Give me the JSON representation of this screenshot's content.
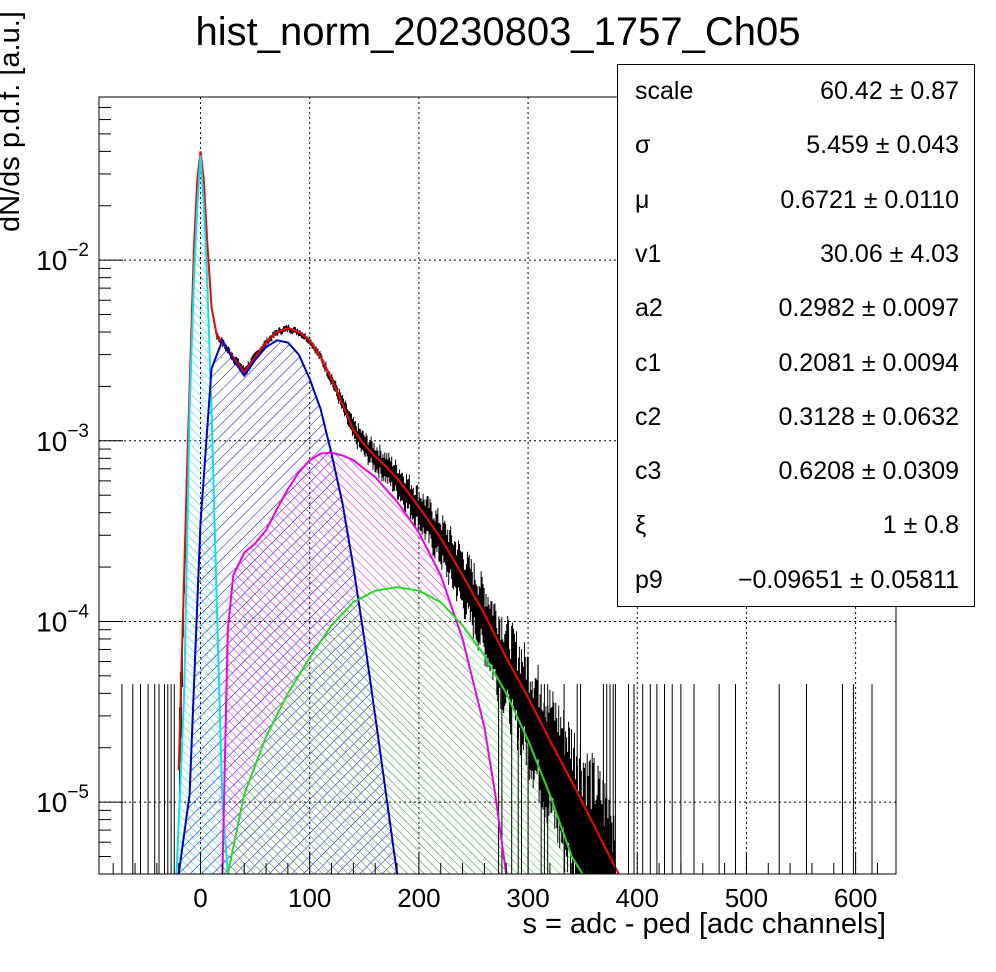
{
  "title": "hist_norm_20230803_1757_Ch05",
  "stats": [
    {
      "name": "scale",
      "value": "60.42 ± 0.87"
    },
    {
      "name": "σ",
      "value": "5.459 ± 0.043"
    },
    {
      "name": "μ",
      "value": "0.6721 ± 0.0110"
    },
    {
      "name": "v1",
      "value": "30.06 ± 4.03"
    },
    {
      "name": "a2",
      "value": "0.2982 ± 0.0097"
    },
    {
      "name": "c1",
      "value": "0.2081 ± 0.0094"
    },
    {
      "name": "c2",
      "value": "0.3128 ± 0.0632"
    },
    {
      "name": "c3",
      "value": "0.6208 ± 0.0309"
    },
    {
      "name": "ξ",
      "value": "1 ± 0.8"
    },
    {
      "name": "p9",
      "value": "−0.09651 ± 0.05811"
    }
  ],
  "chart_data": {
    "type": "line",
    "xlabel": "s = adc - ped [adc channels]",
    "ylabel": "dN/ds p.d.f. [a.u.]",
    "xlim": [
      -93,
      637
    ],
    "ylim": [
      4e-06,
      0.08
    ],
    "yscale": "log",
    "grid": true,
    "xticks": [
      0,
      100,
      200,
      300,
      400,
      500,
      600
    ],
    "yticks": [
      {
        "value": 1e-05,
        "base": "10",
        "exp": "−5"
      },
      {
        "value": 0.0001,
        "base": "10",
        "exp": "−4"
      },
      {
        "value": 0.001,
        "base": "10",
        "exp": "−3"
      },
      {
        "value": 0.01,
        "base": "10",
        "exp": "−2"
      }
    ],
    "series": [
      {
        "color": "#ff0000",
        "fill": false,
        "x": [
          -20,
          -12,
          -6,
          -3,
          0,
          3,
          6,
          10,
          15,
          20,
          30,
          40,
          50,
          60,
          70,
          80,
          90,
          100,
          110,
          120,
          130,
          140,
          150,
          160,
          170,
          180,
          200,
          220,
          240,
          260,
          280,
          300,
          320,
          340,
          360,
          383
        ],
        "y": [
          1.5e-05,
          0.0008,
          0.012,
          0.028,
          0.04,
          0.028,
          0.013,
          0.0055,
          0.0038,
          0.0035,
          0.0029,
          0.0024,
          0.0029,
          0.0035,
          0.004,
          0.0042,
          0.004,
          0.0036,
          0.0029,
          0.0022,
          0.0016,
          0.00115,
          0.00095,
          0.00082,
          0.00072,
          0.00062,
          0.00043,
          0.00029,
          0.00018,
          0.00011,
          6.3e-05,
          3.8e-05,
          2.2e-05,
          1.3e-05,
          7.5e-06,
          4e-06
        ]
      },
      {
        "color": "#00e5ee",
        "fill": true,
        "x": [
          -22,
          -15,
          -10,
          -6,
          -3,
          0,
          3,
          6,
          10,
          15,
          20,
          25
        ],
        "y": [
          4e-06,
          4e-05,
          0.0015,
          0.008,
          0.02,
          0.038,
          0.02,
          0.008,
          0.0015,
          0.00012,
          1e-05,
          4e-06
        ]
      },
      {
        "color": "#0000cc",
        "fill": true,
        "x": [
          -20,
          -10,
          0,
          10,
          20,
          30,
          40,
          50,
          60,
          70,
          80,
          90,
          100,
          110,
          120,
          130,
          140,
          150,
          160,
          180
        ],
        "y": [
          4e-06,
          1.1e-05,
          0.00035,
          0.0025,
          0.0036,
          0.0028,
          0.0023,
          0.0028,
          0.0033,
          0.0036,
          0.0035,
          0.003,
          0.0022,
          0.0015,
          0.00085,
          0.00045,
          0.0002,
          8e-05,
          3e-05,
          4e-06
        ]
      },
      {
        "color": "#ee00ee",
        "fill": true,
        "x": [
          20,
          25,
          30,
          40,
          50,
          60,
          70,
          80,
          90,
          100,
          110,
          120,
          130,
          140,
          160,
          180,
          200,
          220,
          240,
          260,
          270,
          280
        ],
        "y": [
          4e-06,
          9e-05,
          0.00018,
          0.00024,
          0.00027,
          0.00032,
          0.00042,
          0.00054,
          0.00067,
          0.00078,
          0.00085,
          0.00086,
          0.00083,
          0.00078,
          0.00063,
          0.00046,
          0.00031,
          0.00018,
          8e-05,
          2.6e-05,
          1.1e-05,
          4e-06
        ]
      },
      {
        "color": "#22dd22",
        "fill": true,
        "x": [
          25,
          40,
          60,
          80,
          100,
          120,
          140,
          160,
          180,
          200,
          220,
          240,
          260,
          280,
          300,
          320,
          340,
          350
        ],
        "y": [
          4e-06,
          1.1e-05,
          2.3e-05,
          4e-05,
          6.3e-05,
          9.5e-05,
          0.000128,
          0.000148,
          0.000155,
          0.000148,
          0.000128,
          9.5e-05,
          6.5e-05,
          4e-05,
          2.2e-05,
          1.1e-05,
          5e-06,
          4e-06
        ]
      }
    ]
  }
}
